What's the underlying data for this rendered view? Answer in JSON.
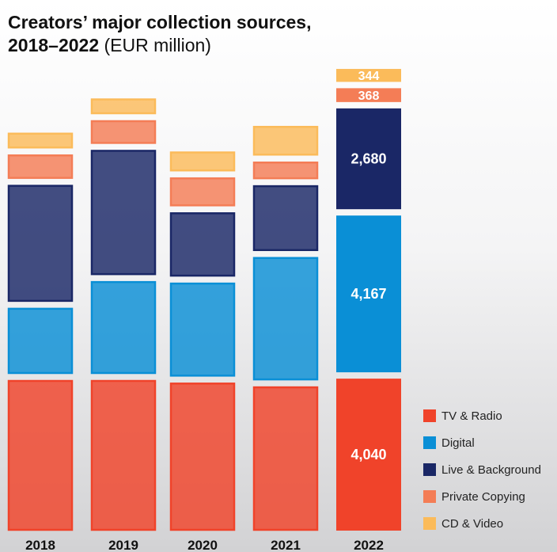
{
  "title": {
    "main_line1": "Creators’ major collection sources,",
    "main_line2": "2018–2022",
    "unit": "(EUR million)"
  },
  "colors": {
    "tv_radio": "#f0432a",
    "digital": "#0a8fd6",
    "live_background": "#1a2766",
    "private_copying": "#f47d56",
    "cd_video": "#fbbb5a"
  },
  "chart_data": {
    "type": "bar",
    "stacked": true,
    "categories": [
      "2018",
      "2019",
      "2020",
      "2021",
      "2022"
    ],
    "series": [
      {
        "name": "TV & Radio",
        "key": "tv_radio",
        "values": [
          4000,
          4000,
          3930,
          3830,
          4040
        ]
      },
      {
        "name": "Digital",
        "key": "digital",
        "values": [
          1750,
          2460,
          2490,
          3270,
          4167
        ]
      },
      {
        "name": "Live & Background",
        "key": "live_background",
        "values": [
          3100,
          3320,
          1700,
          1740,
          2680
        ]
      },
      {
        "name": "Private Copying",
        "key": "private_copying",
        "values": [
          640,
          620,
          760,
          460,
          368
        ]
      },
      {
        "name": "CD & Video",
        "key": "cd_video",
        "values": [
          410,
          410,
          520,
          780,
          344
        ]
      }
    ],
    "data_labels": {
      "2022": [
        "4,040",
        "4,167",
        "2,680",
        "368",
        "344"
      ]
    },
    "highlight_category": "2022",
    "xlabel": "",
    "ylabel": "",
    "legend_position": "bottom-right"
  }
}
